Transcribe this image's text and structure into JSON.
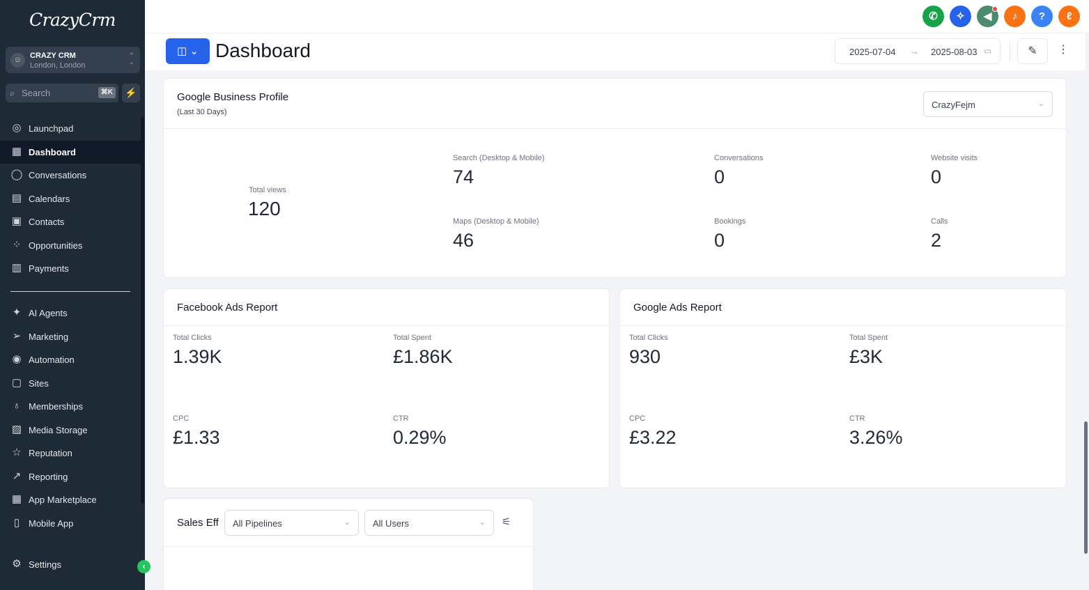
{
  "sidebar": {
    "logo": "CrazyCrm",
    "account": {
      "name": "CRAZY CRM",
      "location": "London, London"
    },
    "search": {
      "placeholder": "Search",
      "shortcut": "⌘K"
    },
    "nav_top": [
      {
        "label": "Launchpad",
        "icon": "launchpad-icon"
      },
      {
        "label": "Dashboard",
        "icon": "dashboard-icon",
        "active": true
      },
      {
        "label": "Conversations",
        "icon": "chat-icon"
      },
      {
        "label": "Calendars",
        "icon": "calendar-icon"
      },
      {
        "label": "Contacts",
        "icon": "contacts-icon"
      },
      {
        "label": "Opportunities",
        "icon": "opportunities-icon"
      },
      {
        "label": "Payments",
        "icon": "payments-icon"
      }
    ],
    "nav_bottom": [
      {
        "label": "AI Agents",
        "icon": "sparkle-icon"
      },
      {
        "label": "Marketing",
        "icon": "send-icon"
      },
      {
        "label": "Automation",
        "icon": "automation-icon"
      },
      {
        "label": "Sites",
        "icon": "sites-icon"
      },
      {
        "label": "Memberships",
        "icon": "membership-icon"
      },
      {
        "label": "Media Storage",
        "icon": "image-icon"
      },
      {
        "label": "Reputation",
        "icon": "star-icon"
      },
      {
        "label": "Reporting",
        "icon": "trend-icon"
      },
      {
        "label": "App Marketplace",
        "icon": "grid-icon"
      },
      {
        "label": "Mobile App",
        "icon": "mobile-icon"
      }
    ],
    "settings_label": "Settings"
  },
  "topbar": {
    "colors": {
      "phone": "#16a34a",
      "magic": "#2563eb",
      "announce": "#4b8b6e",
      "bell": "#f97316",
      "help": "#3b82f6",
      "avatar": "#f97316"
    }
  },
  "header": {
    "title": "Dashboard",
    "date_from": "2025-07-04",
    "date_to": "2025-08-03"
  },
  "gbp": {
    "title": "Google Business Profile",
    "subtitle": "(Last 30 Days)",
    "location_select": "CrazyFejm",
    "total_views_label": "Total views",
    "total_views": "120",
    "metrics": [
      {
        "label": "Search (Desktop & Mobile)",
        "value": "74"
      },
      {
        "label": "Conversations",
        "value": "0"
      },
      {
        "label": "Website visits",
        "value": "0"
      },
      {
        "label": "Maps (Desktop & Mobile)",
        "value": "46"
      },
      {
        "label": "Bookings",
        "value": "0"
      },
      {
        "label": "Calls",
        "value": "2"
      }
    ]
  },
  "facebook_ads": {
    "title": "Facebook Ads Report",
    "metrics": [
      {
        "label": "Total Clicks",
        "value": "1.39K"
      },
      {
        "label": "Total Spent",
        "value": "£1.86K"
      },
      {
        "label": "CPC",
        "value": "£1.33"
      },
      {
        "label": "CTR",
        "value": "0.29%"
      }
    ]
  },
  "google_ads": {
    "title": "Google Ads Report",
    "metrics": [
      {
        "label": "Total Clicks",
        "value": "930"
      },
      {
        "label": "Total Spent",
        "value": "£3K"
      },
      {
        "label": "CPC",
        "value": "£3.22"
      },
      {
        "label": "CTR",
        "value": "3.26%"
      }
    ]
  },
  "sales": {
    "title": "Sales Eff",
    "pipeline_select": "All Pipelines",
    "users_select": "All Users"
  }
}
